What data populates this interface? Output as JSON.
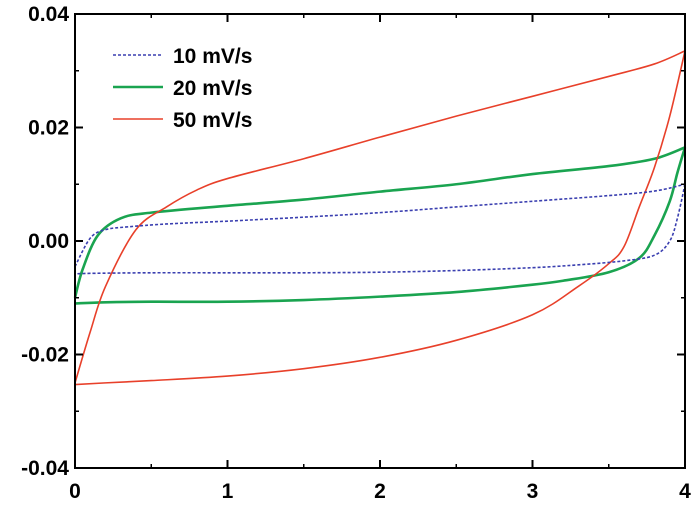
{
  "chart_data": {
    "type": "line",
    "title": "",
    "xlabel": "",
    "ylabel": "",
    "xlim": [
      0,
      4
    ],
    "ylim": [
      -0.04,
      0.04
    ],
    "x_ticks": [
      "0",
      "1",
      "2",
      "3",
      "4"
    ],
    "y_ticks": [
      "-0.04",
      "-0.02",
      "0.00",
      "0.02",
      "0.04"
    ],
    "grid": false,
    "legend_position": "top-left",
    "series": [
      {
        "name": "10 mV/s",
        "color": "#3A3FB0",
        "dash": "dashed",
        "anodic": [
          [
            0,
            -0.0045
          ],
          [
            0.1,
            0.0005
          ],
          [
            0.2,
            0.002
          ],
          [
            0.35,
            0.0025
          ],
          [
            0.6,
            0.003
          ],
          [
            1.0,
            0.0035
          ],
          [
            1.5,
            0.0042
          ],
          [
            2.0,
            0.005
          ],
          [
            2.5,
            0.006
          ],
          [
            3.0,
            0.007
          ],
          [
            3.5,
            0.008
          ],
          [
            3.8,
            0.0088
          ],
          [
            4.0,
            0.01
          ]
        ],
        "cathodic": [
          [
            4.0,
            0.01
          ],
          [
            3.95,
            0.004
          ],
          [
            3.9,
            0.0
          ],
          [
            3.8,
            -0.0025
          ],
          [
            3.6,
            -0.0035
          ],
          [
            3.3,
            -0.0042
          ],
          [
            3.0,
            -0.0047
          ],
          [
            2.5,
            -0.0052
          ],
          [
            2.0,
            -0.0055
          ],
          [
            1.5,
            -0.0056
          ],
          [
            1.0,
            -0.0056
          ],
          [
            0.5,
            -0.0056
          ],
          [
            0.1,
            -0.0057
          ],
          [
            0,
            -0.0058
          ]
        ]
      },
      {
        "name": "20 mV/s",
        "color": "#1AA450",
        "dash": "solid",
        "anodic": [
          [
            0,
            -0.01
          ],
          [
            0.05,
            -0.005
          ],
          [
            0.15,
            0.001
          ],
          [
            0.3,
            0.004
          ],
          [
            0.5,
            0.005
          ],
          [
            1.0,
            0.0062
          ],
          [
            1.5,
            0.0073
          ],
          [
            2.0,
            0.0087
          ],
          [
            2.5,
            0.01
          ],
          [
            3.0,
            0.0118
          ],
          [
            3.5,
            0.0132
          ],
          [
            3.8,
            0.0145
          ],
          [
            4.0,
            0.0165
          ]
        ],
        "cathodic": [
          [
            4.0,
            0.0165
          ],
          [
            3.95,
            0.012
          ],
          [
            3.9,
            0.007
          ],
          [
            3.8,
            0.001
          ],
          [
            3.7,
            -0.003
          ],
          [
            3.5,
            -0.0055
          ],
          [
            3.2,
            -0.007
          ],
          [
            3.0,
            -0.0077
          ],
          [
            2.5,
            -0.009
          ],
          [
            2.0,
            -0.0098
          ],
          [
            1.5,
            -0.0104
          ],
          [
            1.0,
            -0.0107
          ],
          [
            0.5,
            -0.0107
          ],
          [
            0.2,
            -0.0108
          ],
          [
            0,
            -0.011
          ]
        ]
      },
      {
        "name": "50 mV/s",
        "color": "#E8402A",
        "dash": "solid",
        "anodic": [
          [
            0,
            -0.025
          ],
          [
            0.1,
            -0.016
          ],
          [
            0.2,
            -0.008
          ],
          [
            0.4,
            0.002
          ],
          [
            0.6,
            0.006
          ],
          [
            0.8,
            0.009
          ],
          [
            1.0,
            0.011
          ],
          [
            1.5,
            0.0145
          ],
          [
            2.0,
            0.0183
          ],
          [
            2.5,
            0.022
          ],
          [
            3.0,
            0.0255
          ],
          [
            3.5,
            0.029
          ],
          [
            3.8,
            0.0312
          ],
          [
            4.0,
            0.0335
          ]
        ],
        "cathodic": [
          [
            4.0,
            0.0335
          ],
          [
            3.9,
            0.022
          ],
          [
            3.8,
            0.013
          ],
          [
            3.7,
            0.006
          ],
          [
            3.6,
            -0.001
          ],
          [
            3.5,
            -0.004
          ],
          [
            3.3,
            -0.008
          ],
          [
            3.0,
            -0.013
          ],
          [
            2.5,
            -0.0175
          ],
          [
            2.0,
            -0.0205
          ],
          [
            1.5,
            -0.0225
          ],
          [
            1.0,
            -0.0238
          ],
          [
            0.5,
            -0.0246
          ],
          [
            0.2,
            -0.025
          ],
          [
            0,
            -0.0253
          ]
        ]
      }
    ]
  }
}
